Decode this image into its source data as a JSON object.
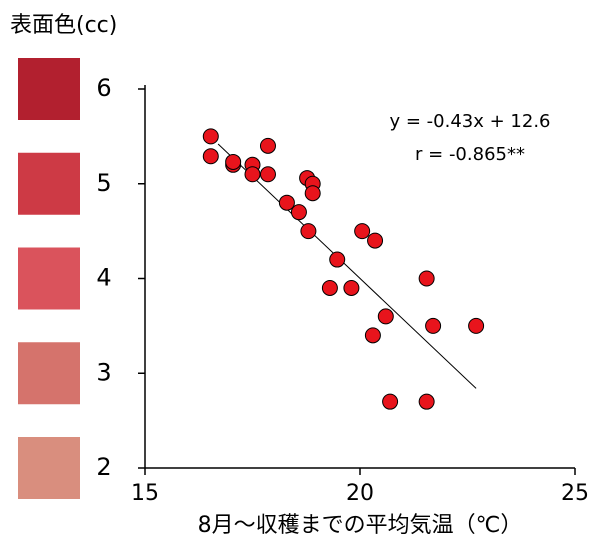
{
  "chart_data": {
    "type": "scatter",
    "y_label": "表面色(cc)",
    "x_label": "8月～収穫までの平均気温（℃）",
    "annotations": [
      "y = -0.43x + 12.6",
      "r = -0.865**"
    ],
    "xlim": [
      15,
      25
    ],
    "xticks": [
      15,
      20,
      25
    ],
    "ylim": [
      2,
      6
    ],
    "yticks": [
      2,
      3,
      4,
      5,
      6
    ],
    "swatch_colors": [
      "#d98e7e",
      "#d5736c",
      "#da535c",
      "#cd3a45",
      "#b2202f"
    ],
    "color": "#e8141c",
    "x": [
      16.53,
      16.53,
      17.05,
      17.05,
      17.5,
      17.5,
      17.86,
      17.86,
      18.3,
      18.58,
      18.77,
      18.9,
      18.9,
      18.8,
      19.47,
      19.3,
      19.8,
      20.05,
      20.35,
      20.6,
      20.3,
      20.7,
      21.55,
      21.7,
      21.55,
      22.7
    ],
    "y": [
      5.5,
      5.29,
      5.2,
      5.23,
      5.2,
      5.1,
      5.4,
      5.1,
      4.8,
      4.7,
      5.06,
      5.0,
      4.9,
      4.5,
      4.2,
      3.9,
      3.9,
      4.5,
      4.4,
      3.6,
      3.4,
      2.7,
      4.0,
      3.5,
      2.7,
      3.5
    ],
    "trendline": {
      "x": [
        16.7,
        22.7
      ],
      "y": [
        5.42,
        2.84
      ]
    }
  }
}
